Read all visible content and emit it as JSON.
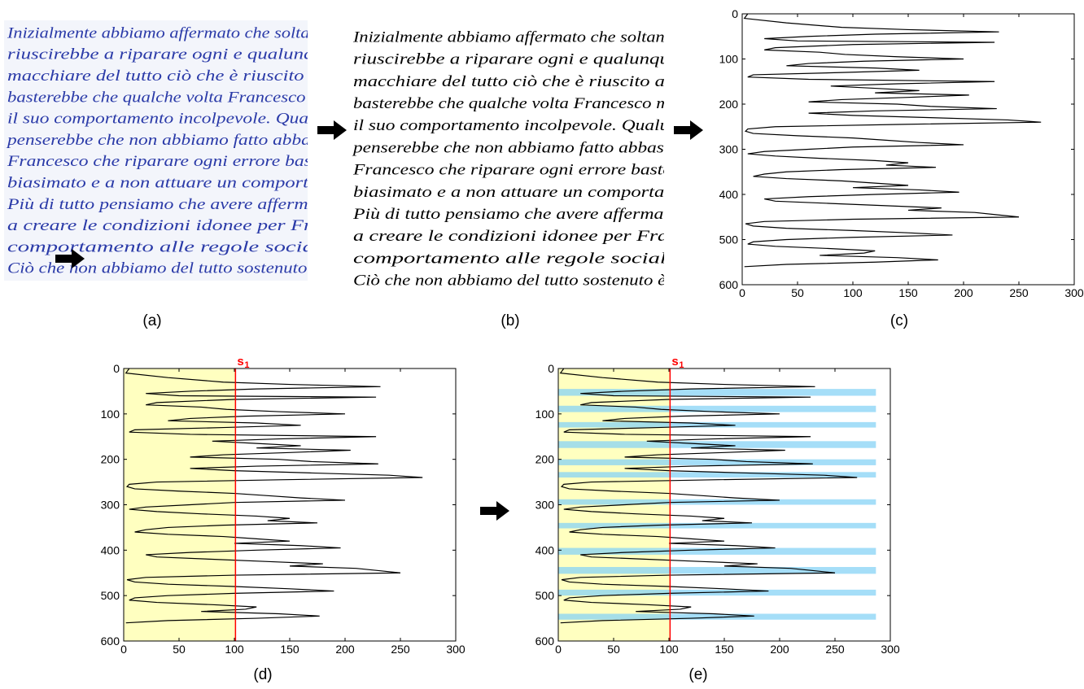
{
  "handwriting": {
    "lines": [
      "Inizialmente abbiamo affermato che soltanto",
      "riuscirebbe a riparare ogni e qualunque",
      "macchiare del tutto ciò che è riuscito a c",
      "basterebbe che qualche volta Francesco mo",
      "il suo comportamento incolpevole. Qualun",
      "penserebbe che non abbiamo fatto abbasta",
      "Francesco che riparare ogni errore baster",
      "biasimato e a non attuare un comportam",
      "Più di tutto pensiamo che avere affermato",
      "a creare le condizioni idonee per Fran",
      "comportamento alle regole sociali.",
      "Ciò che non abbiamo del tutto sostenuto è c"
    ]
  },
  "panel_labels": [
    "(a)",
    "(b)",
    "(c)",
    "(d)",
    "(e)"
  ],
  "profile": {
    "rows": [
      0,
      10,
      20,
      30,
      35,
      40,
      45,
      50,
      55,
      60,
      63,
      68,
      75,
      80,
      85,
      90,
      95,
      100,
      105,
      110,
      115,
      120,
      125,
      130,
      135,
      140,
      145,
      150,
      155,
      160,
      165,
      170,
      175,
      180,
      185,
      190,
      195,
      200,
      205,
      210,
      215,
      220,
      225,
      230,
      235,
      240,
      245,
      250,
      255,
      260,
      265,
      270,
      275,
      280,
      285,
      290,
      295,
      300,
      305,
      310,
      315,
      320,
      325,
      330,
      335,
      340,
      345,
      350,
      355,
      360,
      365,
      370,
      375,
      380,
      385,
      390,
      395,
      400,
      405,
      410,
      415,
      420,
      425,
      430,
      435,
      440,
      445,
      450,
      455,
      460,
      465,
      470,
      475,
      480,
      485,
      490,
      495,
      500,
      505,
      510,
      515,
      520,
      525,
      530,
      535,
      540,
      545,
      550,
      555,
      560
    ],
    "values": [
      5,
      2,
      40,
      90,
      150,
      232,
      120,
      60,
      20,
      50,
      228,
      100,
      30,
      20,
      70,
      93,
      140,
      200,
      110,
      60,
      40,
      120,
      160,
      90,
      10,
      5,
      60,
      228,
      140,
      80,
      120,
      160,
      120,
      205,
      150,
      90,
      60,
      140,
      170,
      230,
      120,
      60,
      100,
      170,
      240,
      270,
      140,
      30,
      5,
      3,
      10,
      50,
      100,
      130,
      160,
      200,
      100,
      60,
      20,
      5,
      30,
      70,
      120,
      150,
      130,
      175,
      90,
      40,
      20,
      10,
      40,
      90,
      120,
      150,
      100,
      160,
      196,
      120,
      60,
      20,
      30,
      80,
      130,
      180,
      150,
      210,
      230,
      250,
      100,
      20,
      3,
      10,
      40,
      100,
      150,
      190,
      100,
      40,
      10,
      5,
      30,
      80,
      120,
      110,
      70,
      140,
      177,
      120,
      40,
      2
    ]
  },
  "chart_data": [
    {
      "type": "line",
      "color": "#000000",
      "xlim": [
        0,
        300
      ],
      "ylim": [
        0,
        600
      ],
      "y_inverted": true,
      "xticks": [
        0,
        50,
        100,
        150,
        200,
        250,
        300
      ],
      "yticks": [
        0,
        100,
        200,
        300,
        400,
        500,
        600
      ]
    },
    {
      "type": "line",
      "color": "#000000",
      "xlim": [
        0,
        300
      ],
      "ylim": [
        0,
        600
      ],
      "y_inverted": true,
      "xticks": [
        0,
        50,
        100,
        150,
        200,
        250,
        300
      ],
      "yticks": [
        0,
        100,
        200,
        300,
        400,
        500,
        600
      ],
      "threshold": {
        "value": 101,
        "label": "s",
        "subscript": "1"
      },
      "threshold_color": "#ff0000",
      "shade_color": "#ffffc0"
    },
    {
      "type": "line",
      "color": "#000000",
      "xlim": [
        0,
        300
      ],
      "ylim": [
        0,
        600
      ],
      "y_inverted": true,
      "xticks": [
        0,
        50,
        100,
        150,
        200,
        250,
        300
      ],
      "yticks": [
        0,
        100,
        200,
        300,
        400,
        500,
        600
      ],
      "threshold": {
        "value": 101,
        "label": "s",
        "subscript": "1"
      },
      "threshold_color": "#ff0000",
      "shade_color": "#ffffc0",
      "bands": [
        [
          45,
          60
        ],
        [
          82,
          96
        ],
        [
          118,
          130
        ],
        [
          160,
          175
        ],
        [
          200,
          213
        ],
        [
          228,
          240
        ],
        [
          288,
          300
        ],
        [
          340,
          352
        ],
        [
          395,
          410
        ],
        [
          437,
          452
        ],
        [
          487,
          500
        ],
        [
          540,
          553
        ]
      ],
      "band_xmax": 287,
      "band_color": "#87d3f5"
    }
  ]
}
